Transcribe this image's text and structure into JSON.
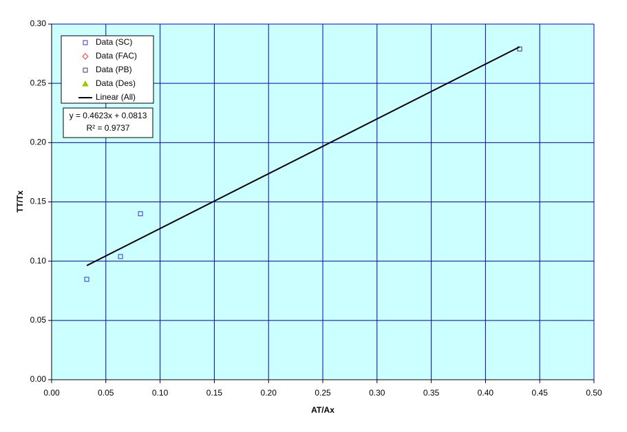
{
  "chart_data": {
    "type": "scatter",
    "x_label": "AT/Ax",
    "y_label": "TT/Tx",
    "xlim": [
      0,
      0.5
    ],
    "ylim": [
      0,
      0.3
    ],
    "xticks": [
      {
        "value": 0,
        "label": "0.00"
      },
      {
        "value": 0.05,
        "label": "0.05"
      },
      {
        "value": 0.1,
        "label": "0.10"
      },
      {
        "value": 0.15,
        "label": "0.15"
      },
      {
        "value": 0.2,
        "label": "0.20"
      },
      {
        "value": 0.25,
        "label": "0.25"
      },
      {
        "value": 0.3,
        "label": "0.30"
      },
      {
        "value": 0.35,
        "label": "0.35"
      },
      {
        "value": 0.4,
        "label": "0.40"
      },
      {
        "value": 0.45,
        "label": "0.45"
      },
      {
        "value": 0.5,
        "label": "0.50"
      }
    ],
    "yticks": [
      {
        "value": 0,
        "label": "0.00"
      },
      {
        "value": 0.05,
        "label": "0.05"
      },
      {
        "value": 0.1,
        "label": "0.10"
      },
      {
        "value": 0.15,
        "label": "0.15"
      },
      {
        "value": 0.2,
        "label": "0.20"
      },
      {
        "value": 0.25,
        "label": "0.25"
      },
      {
        "value": 0.3,
        "label": "0.30"
      }
    ],
    "grid": true,
    "legend": "upper left",
    "series": [
      {
        "name": "Data (SC)",
        "color": "#3333cc",
        "marker": "square",
        "x": [
          0.0324,
          0.0635,
          0.0819
        ],
        "values": [
          0.0847,
          0.1039,
          0.14
        ]
      },
      {
        "name": "Data (FAC)",
        "color": "#ff3333",
        "marker": "diamond",
        "x": [],
        "values": []
      },
      {
        "name": "Data (PB)",
        "color": "#333366",
        "marker": "square",
        "x": [
          0.4315
        ],
        "values": [
          0.279
        ]
      },
      {
        "name": "Data (Des)",
        "color": "#99cc00",
        "marker": "triangle",
        "x": [],
        "values": []
      },
      {
        "name": "Linear (All)",
        "color": "#000000",
        "marker": "line",
        "x": [
          0.0324,
          0.4315
        ],
        "values": [
          0.0963,
          0.2808
        ]
      }
    ],
    "annotations": [
      "y = 0.4623x + 0.0813",
      "R² = 0.9737"
    ]
  }
}
